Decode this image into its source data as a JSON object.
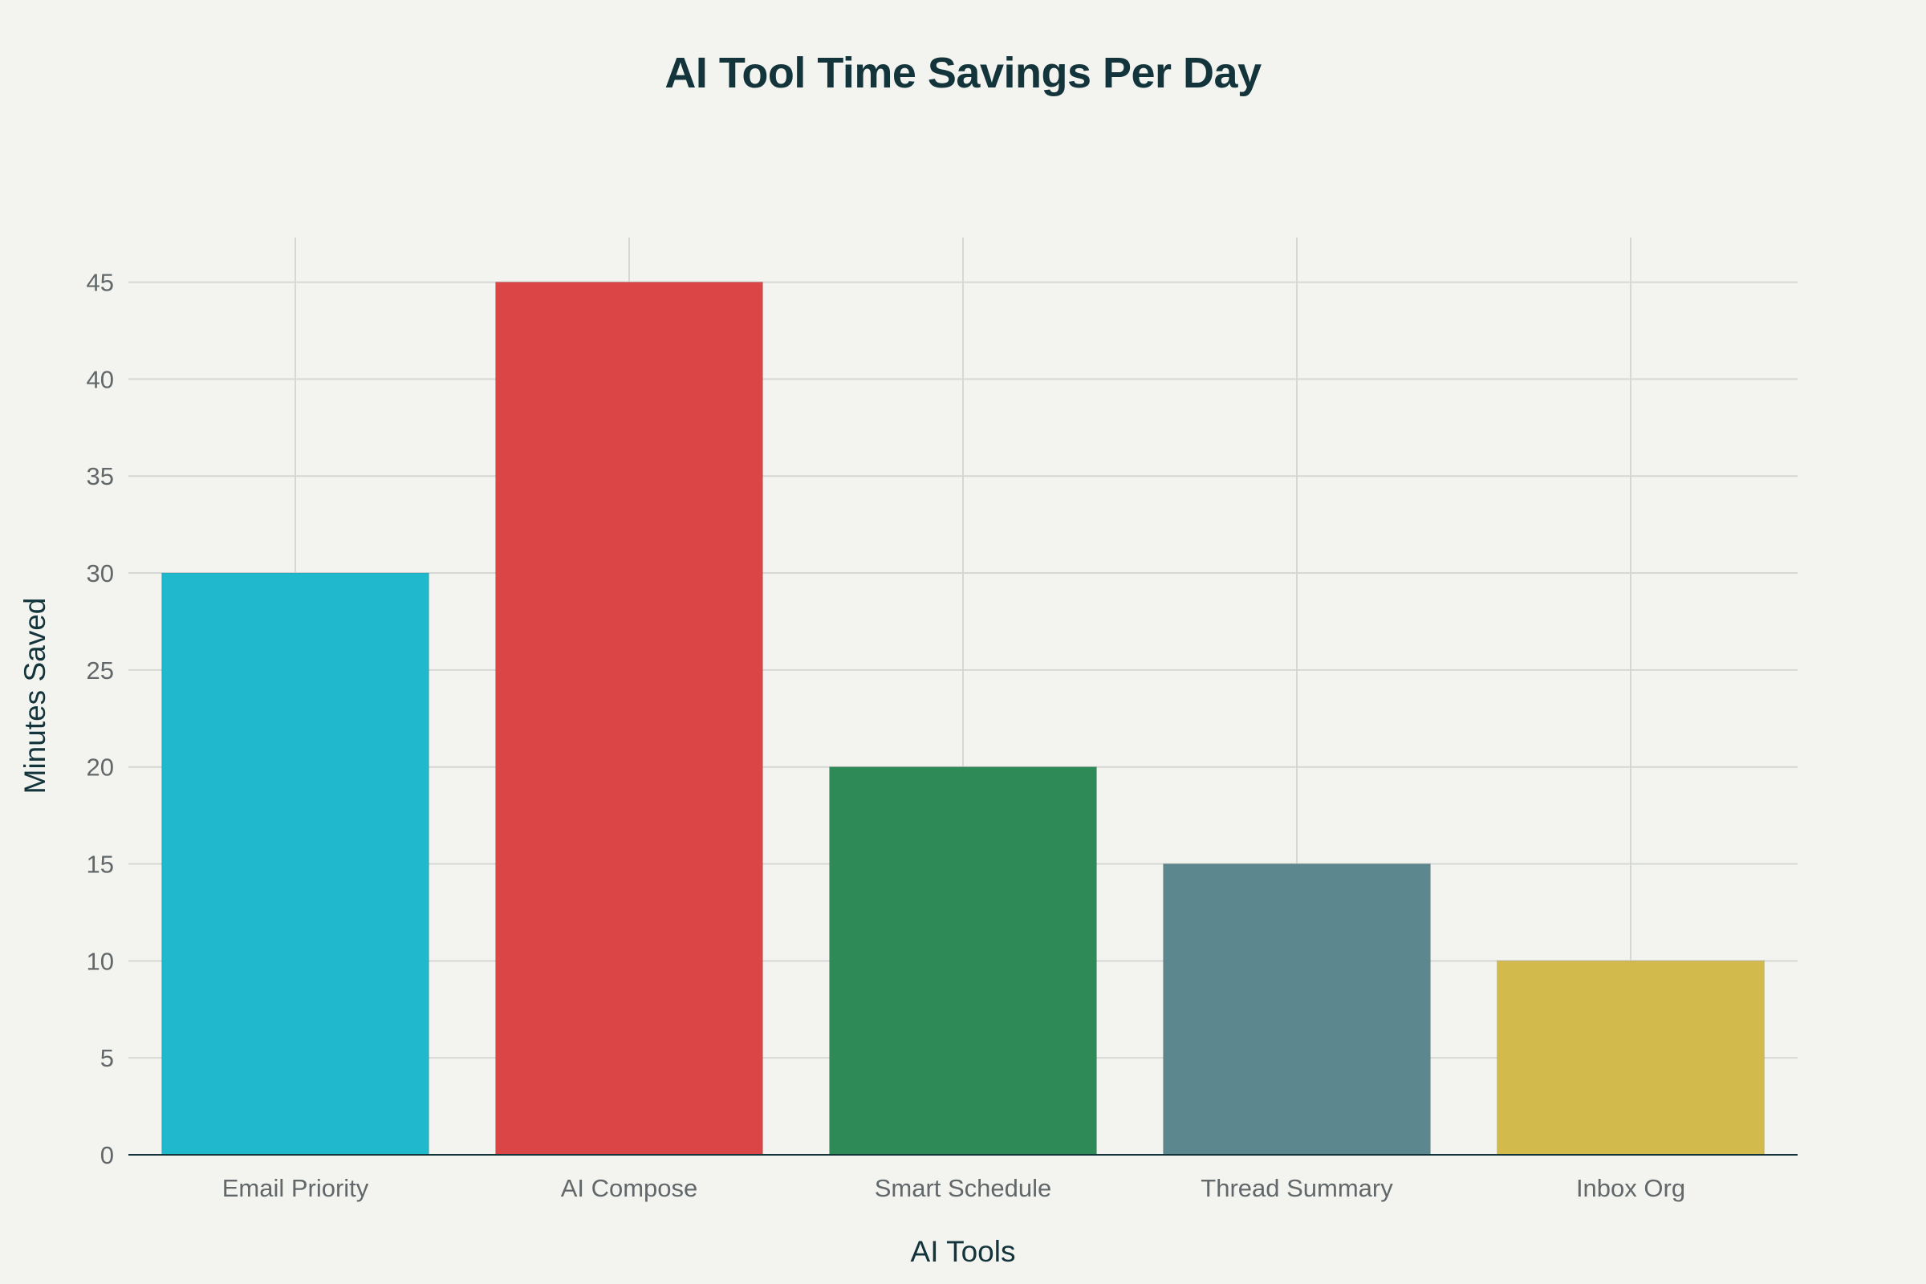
{
  "chart_data": {
    "type": "bar",
    "title": "AI Tool Time Savings Per Day",
    "xlabel": "AI Tools",
    "ylabel": "Minutes Saved",
    "categories": [
      "Email Priority",
      "AI Compose",
      "Smart Schedule",
      "Thread Summary",
      "Inbox Org"
    ],
    "values": [
      30,
      45,
      20,
      15,
      10
    ],
    "colors": [
      "#1fb8cd",
      "#db4545",
      "#2e8b57",
      "#5d878f",
      "#d2ba4c"
    ],
    "ylim": [
      0,
      47.3
    ],
    "yticks": [
      0,
      5,
      10,
      15,
      20,
      25,
      30,
      35,
      40,
      45
    ],
    "grid": true,
    "legend": "none"
  }
}
